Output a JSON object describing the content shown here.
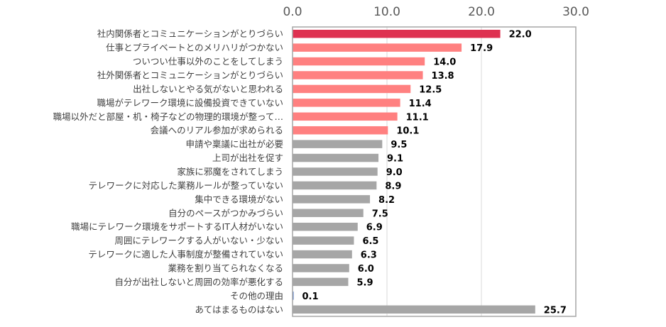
{
  "chart_data": {
    "type": "bar",
    "orientation": "horizontal",
    "title": "",
    "xlabel": "",
    "ylabel": "",
    "xlim": [
      0,
      30
    ],
    "x_ticks": [
      "0.0",
      "10.0",
      "20.0",
      "30.0"
    ],
    "x_tick_values": [
      0,
      10,
      20,
      30
    ],
    "grid": true,
    "categories": [
      "社内関係者とコミュニケーションがとりづらい",
      "仕事とプライベートとのメリハリがつかない",
      "ついつい仕事以外のことをしてしまう",
      "社外関係者とコミュニケーションがとりづらい",
      "出社しないとやる気がないと思われる",
      "職場がテレワーク環境に設備投資できていない",
      "職場以外だと部屋・机・椅子などの物理的環境が整って…",
      "会議へのリアル参加が求められる",
      "申請や稟議に出社が必要",
      "上司が出社を促す",
      "家族に邪魔をされてしまう",
      "テレワークに対応した業務ルールが整っていない",
      "集中できる環境がない",
      "自分のペースがつかみづらい",
      "職場にテレワーク環境をサポートするIT人材がいない",
      "周囲にテレワークする人がいない・少ない",
      "テレワークに適した人事制度が整備されていない",
      "業務を割り当てられなくなる",
      "自分が出社しないと周囲の効率が悪化する",
      "その他の理由",
      "あてはまるものはない"
    ],
    "values": [
      22.0,
      17.9,
      14.0,
      13.8,
      12.5,
      11.4,
      11.1,
      10.1,
      9.5,
      9.1,
      9.0,
      8.9,
      8.2,
      7.5,
      6.9,
      6.5,
      6.3,
      6.0,
      5.9,
      0.1,
      25.7
    ],
    "value_labels": [
      "22.0",
      "17.9",
      "14.0",
      "13.8",
      "12.5",
      "11.4",
      "11.1",
      "10.1",
      "9.5",
      "9.1",
      "9.0",
      "8.9",
      "8.2",
      "7.5",
      "6.9",
      "6.5",
      "6.3",
      "6.0",
      "5.9",
      "0.1",
      "25.7"
    ],
    "bar_color_groups": [
      "top",
      "high",
      "high",
      "high",
      "high",
      "high",
      "high",
      "high",
      "other",
      "other",
      "other",
      "other",
      "other",
      "other",
      "other",
      "other",
      "other",
      "other",
      "other",
      "misc",
      "other"
    ],
    "colors": {
      "top": "#DE3151",
      "high": "#FF8080",
      "other": "#A6A6A6",
      "misc": "#4472C4",
      "grid": "#D9D9D9",
      "border": "#A6A6A6"
    }
  }
}
